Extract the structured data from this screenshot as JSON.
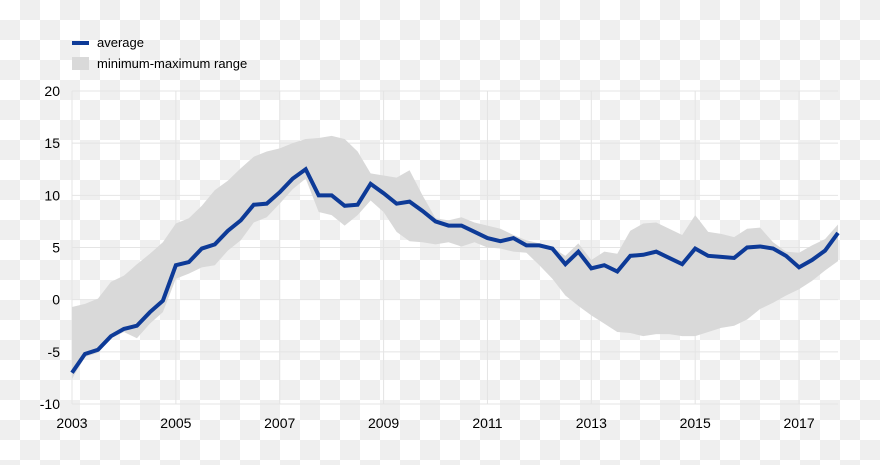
{
  "chart_data": {
    "type": "line",
    "title": "",
    "xlabel": "",
    "ylabel": "",
    "xlim": [
      2003,
      2017.75
    ],
    "ylim": [
      -10,
      20
    ],
    "x_ticks": [
      "2003",
      "2005",
      "2007",
      "2009",
      "2011",
      "2013",
      "2015",
      "2017"
    ],
    "y_ticks": [
      "-10",
      "-5",
      "0",
      "5",
      "10",
      "15",
      "20"
    ],
    "grid": true,
    "legend_position": "top-left",
    "x_start": 2003,
    "x_step": 0.25,
    "series": [
      {
        "name": "average",
        "kind": "line",
        "color": "#0d3a97",
        "values": [
          -7.0,
          -5.2,
          -4.8,
          -3.5,
          -2.8,
          -2.5,
          -1.2,
          -0.1,
          3.3,
          3.6,
          4.9,
          5.3,
          6.6,
          7.6,
          9.1,
          9.2,
          10.3,
          11.6,
          12.5,
          10.0,
          10.0,
          9.0,
          9.1,
          11.1,
          10.2,
          9.2,
          9.4,
          8.5,
          7.5,
          7.1,
          7.1,
          6.5,
          5.9,
          5.6,
          5.9,
          5.2,
          5.2,
          4.9,
          3.4,
          4.6,
          3.0,
          3.3,
          2.7,
          4.2,
          4.3,
          4.6,
          4.0,
          3.4,
          4.9,
          4.2,
          4.1,
          4.0,
          5.0,
          5.1,
          4.9,
          4.2,
          3.1,
          3.8,
          4.7,
          6.4
        ]
      },
      {
        "name": "minimum-maximum range",
        "kind": "band",
        "color": "#d9d9d9",
        "max": [
          -0.7,
          -0.4,
          0.1,
          1.7,
          2.3,
          3.4,
          4.4,
          5.5,
          7.3,
          7.8,
          9.0,
          10.5,
          11.4,
          12.6,
          13.7,
          14.2,
          14.5,
          15.0,
          15.4,
          15.5,
          15.7,
          15.4,
          14.2,
          12.1,
          11.9,
          11.7,
          12.4,
          10.0,
          7.8,
          7.6,
          7.9,
          7.4,
          7.1,
          6.8,
          6.2,
          5.7,
          5.4,
          5.0,
          4.2,
          5.4,
          3.8,
          4.6,
          4.4,
          6.6,
          7.3,
          7.4,
          6.8,
          6.2,
          8.1,
          6.5,
          6.3,
          6.0,
          6.8,
          6.9,
          5.5,
          4.6,
          4.5,
          5.2,
          5.8,
          7.2
        ],
        "min": [
          -7.6,
          -5.5,
          -5.1,
          -3.7,
          -3.1,
          -3.7,
          -2.3,
          -1.2,
          2.0,
          2.5,
          3.1,
          3.3,
          4.7,
          5.7,
          7.4,
          7.9,
          9.2,
          10.6,
          11.6,
          8.4,
          8.1,
          7.1,
          8.1,
          9.5,
          8.4,
          6.5,
          5.6,
          5.5,
          5.3,
          5.5,
          5.1,
          5.5,
          5.0,
          4.9,
          4.6,
          4.5,
          3.3,
          2.0,
          0.4,
          -0.6,
          -1.5,
          -2.3,
          -3.1,
          -3.2,
          -3.5,
          -3.3,
          -3.3,
          -3.5,
          -3.5,
          -3.1,
          -2.7,
          -2.5,
          -1.9,
          -0.9,
          -0.3,
          0.4,
          1.0,
          1.8,
          2.8,
          3.7
        ]
      }
    ]
  }
}
